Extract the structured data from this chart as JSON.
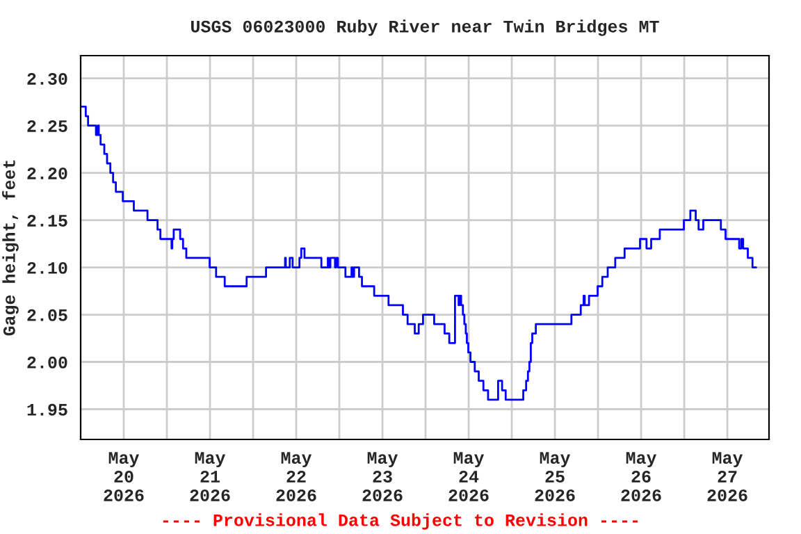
{
  "chart_data": {
    "type": "step",
    "title": "USGS 06023000 Ruby River near Twin Bridges MT",
    "ylabel": "Gage height, feet",
    "annotations": [
      "---- Provisional Data Subject to Revision ----"
    ],
    "series": [
      {
        "color": "#0000ff",
        "x": [
          "2026-05-20T00:23",
          "2026-05-20T01:25",
          "2026-05-20T02:04",
          "2026-05-20T04:16",
          "2026-05-20T04:46",
          "2026-05-20T05:02",
          "2026-05-20T05:33",
          "2026-05-20T06:35",
          "2026-05-20T07:21",
          "2026-05-20T08:16",
          "2026-05-20T09:02",
          "2026-05-20T09:48",
          "2026-05-20T11:44",
          "2026-05-20T14:48",
          "2026-05-20T18:36",
          "2026-05-20T21:24",
          "2026-05-20T22:12",
          "2026-05-21T01:18",
          "2026-05-21T01:30",
          "2026-05-21T01:54",
          "2026-05-21T03:42",
          "2026-05-21T04:30",
          "2026-05-21T05:24",
          "2026-05-21T11:54",
          "2026-05-21T13:42",
          "2026-05-21T16:06",
          "2026-05-21T22:12",
          "2026-05-22T03:36",
          "2026-05-22T08:54",
          "2026-05-22T09:06",
          "2026-05-22T10:12",
          "2026-05-22T11:00",
          "2026-05-22T12:54",
          "2026-05-22T13:24",
          "2026-05-22T14:18",
          "2026-05-22T19:00",
          "2026-05-22T20:48",
          "2026-05-22T21:00",
          "2026-05-22T21:30",
          "2026-05-22T22:48",
          "2026-05-22T23:06",
          "2026-05-22T23:36",
          "2026-05-23T01:42",
          "2026-05-23T03:24",
          "2026-05-23T03:42",
          "2026-05-23T04:06",
          "2026-05-23T05:30",
          "2026-05-23T06:18",
          "2026-05-23T09:42",
          "2026-05-23T13:42",
          "2026-05-23T17:42",
          "2026-05-23T19:00",
          "2026-05-23T21:00",
          "2026-05-23T22:06",
          "2026-05-23T23:18",
          "2026-05-24T02:24",
          "2026-05-24T05:18",
          "2026-05-24T06:36",
          "2026-05-24T08:12",
          "2026-05-24T09:12",
          "2026-05-24T09:24",
          "2026-05-24T09:54",
          "2026-05-24T10:24",
          "2026-05-24T10:48",
          "2026-05-24T11:12",
          "2026-05-24T11:30",
          "2026-05-24T11:54",
          "2026-05-24T12:30",
          "2026-05-24T13:42",
          "2026-05-24T14:48",
          "2026-05-24T16:06",
          "2026-05-24T17:24",
          "2026-05-24T20:12",
          "2026-05-24T21:18",
          "2026-05-24T22:18",
          "2026-05-25T03:12",
          "2026-05-25T04:00",
          "2026-05-25T04:30",
          "2026-05-25T04:54",
          "2026-05-25T05:18",
          "2026-05-25T05:42",
          "2026-05-25T06:42",
          "2026-05-25T16:36",
          "2026-05-25T17:42",
          "2026-05-25T19:12",
          "2026-05-25T20:00",
          "2026-05-25T20:18",
          "2026-05-25T21:30",
          "2026-05-25T23:54",
          "2026-05-26T01:12",
          "2026-05-26T02:42",
          "2026-05-26T04:48",
          "2026-05-26T07:24",
          "2026-05-26T11:42",
          "2026-05-26T13:30",
          "2026-05-26T14:48",
          "2026-05-26T17:12",
          "2026-05-26T23:54",
          "2026-05-27T01:42",
          "2026-05-27T03:12",
          "2026-05-27T04:00",
          "2026-05-27T05:18",
          "2026-05-27T10:12",
          "2026-05-27T11:30",
          "2026-05-27T15:18",
          "2026-05-27T15:54",
          "2026-05-27T16:24",
          "2026-05-27T17:42",
          "2026-05-27T19:00",
          "2026-05-27T20:00"
        ],
        "values": [
          2.27,
          2.26,
          2.25,
          2.24,
          2.25,
          2.24,
          2.23,
          2.22,
          2.21,
          2.2,
          2.19,
          2.18,
          2.17,
          2.16,
          2.15,
          2.14,
          2.13,
          2.12,
          2.13,
          2.14,
          2.13,
          2.12,
          2.11,
          2.1,
          2.09,
          2.08,
          2.09,
          2.1,
          2.11,
          2.1,
          2.11,
          2.1,
          2.11,
          2.12,
          2.11,
          2.1,
          2.11,
          2.1,
          2.11,
          2.1,
          2.11,
          2.1,
          2.09,
          2.1,
          2.09,
          2.1,
          2.09,
          2.08,
          2.07,
          2.06,
          2.05,
          2.04,
          2.03,
          2.04,
          2.05,
          2.04,
          2.03,
          2.02,
          2.07,
          2.06,
          2.07,
          2.06,
          2.05,
          2.04,
          2.03,
          2.02,
          2.01,
          2.0,
          1.99,
          1.98,
          1.97,
          1.96,
          1.98,
          1.97,
          1.96,
          1.97,
          1.98,
          1.99,
          2.0,
          2.02,
          2.03,
          2.04,
          2.05,
          2.05,
          2.06,
          2.07,
          2.06,
          2.07,
          2.08,
          2.09,
          2.1,
          2.11,
          2.12,
          2.13,
          2.12,
          2.13,
          2.14,
          2.15,
          2.16,
          2.15,
          2.14,
          2.15,
          2.14,
          2.13,
          2.12,
          2.13,
          2.12,
          2.11,
          2.1,
          2.1
        ]
      }
    ],
    "xlim": [
      "2026-05-20T00:00",
      "2026-05-27T23:36"
    ],
    "xticks": [
      {
        "value": "2026-05-20T12:00",
        "label": "May\n20\n2026"
      },
      {
        "value": "2026-05-21T00:00",
        "label": null
      },
      {
        "value": "2026-05-21T12:00",
        "label": "May\n21\n2026"
      },
      {
        "value": "2026-05-22T00:00",
        "label": null
      },
      {
        "value": "2026-05-22T12:00",
        "label": "May\n22\n2026"
      },
      {
        "value": "2026-05-23T00:00",
        "label": null
      },
      {
        "value": "2026-05-23T12:00",
        "label": "May\n23\n2026"
      },
      {
        "value": "2026-05-24T00:00",
        "label": null
      },
      {
        "value": "2026-05-24T12:00",
        "label": "May\n24\n2026"
      },
      {
        "value": "2026-05-25T00:00",
        "label": null
      },
      {
        "value": "2026-05-25T12:00",
        "label": "May\n25\n2026"
      },
      {
        "value": "2026-05-26T00:00",
        "label": null
      },
      {
        "value": "2026-05-26T12:00",
        "label": "May\n26\n2026"
      },
      {
        "value": "2026-05-27T00:00",
        "label": null
      },
      {
        "value": "2026-05-27T12:00",
        "label": "May\n27\n2026"
      }
    ],
    "ylim": [
      1.918,
      2.324
    ],
    "yticks": [
      1.95,
      {
        "value": 2.0,
        "label": "2.00"
      },
      2.05,
      {
        "value": 2.1,
        "label": "2.10"
      },
      2.15,
      {
        "value": 2.2,
        "label": "2.20"
      },
      2.25,
      {
        "value": 2.3,
        "label": "2.30"
      }
    ],
    "grid": true,
    "marker": "none",
    "line_style": "solid"
  }
}
